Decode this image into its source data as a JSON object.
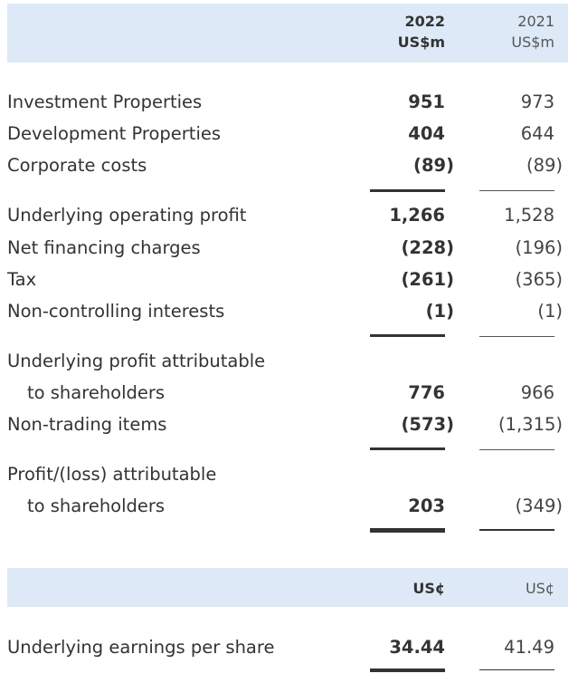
{
  "header": {
    "col1_year": "2022",
    "col1_unit": "US$m",
    "col2_year": "2021",
    "col2_unit": "US$m"
  },
  "rows": [
    {
      "label": "Investment Properties",
      "v2022": "951",
      "v2021": "973"
    },
    {
      "label": "Development Properties",
      "v2022": "404",
      "v2021": "644"
    },
    {
      "label": "Corporate costs",
      "v2022": "(89)",
      "v2021": "(89)"
    },
    {
      "label": "Underlying operating profit",
      "v2022": "1,266",
      "v2021": "1,528"
    },
    {
      "label": "Net financing charges",
      "v2022": "(228)",
      "v2021": "(196)"
    },
    {
      "label": "Tax",
      "v2022": "(261)",
      "v2021": "(365)"
    },
    {
      "label": "Non-controlling interests",
      "v2022": "(1)",
      "v2021": "(1)"
    },
    {
      "label": "Underlying profit attributable",
      "v2022": "",
      "v2021": ""
    },
    {
      "label": "to shareholders",
      "v2022": "776",
      "v2021": "966"
    },
    {
      "label": "Non-trading items",
      "v2022": "(573)",
      "v2021": "(1,315)"
    },
    {
      "label": "Profit/(loss) attributable",
      "v2022": "",
      "v2021": ""
    },
    {
      "label": "to shareholders",
      "v2022": "203",
      "v2021": "(349)"
    }
  ],
  "eps_header": {
    "col1_unit": "US¢",
    "col2_unit": "US¢"
  },
  "eps": {
    "label": "Underlying earnings per share",
    "v2022": "34.44",
    "v2021": "41.49"
  }
}
